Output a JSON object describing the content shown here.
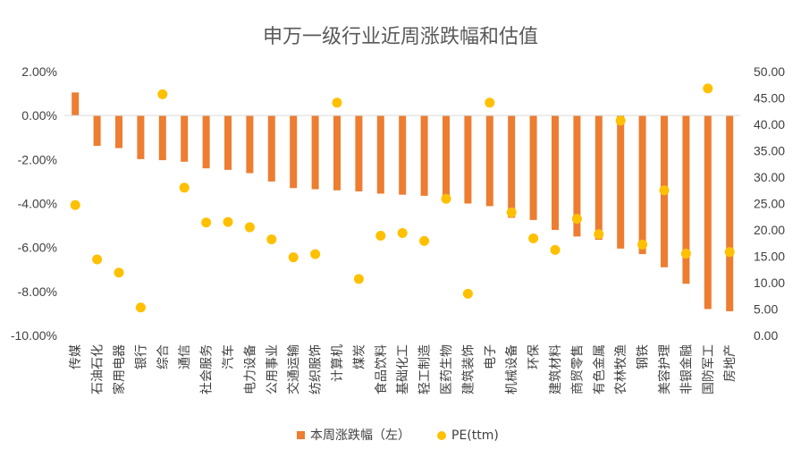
{
  "chart_data": {
    "type": "bar",
    "title": "申万一级行业近周涨跌幅和估值",
    "categories": [
      "传媒",
      "石油石化",
      "家用电器",
      "银行",
      "综合",
      "通信",
      "社会服务",
      "汽车",
      "电力设备",
      "公用事业",
      "交通运输",
      "纺织服饰",
      "计算机",
      "煤炭",
      "食品饮料",
      "基础化工",
      "轻工制造",
      "医药生物",
      "建筑装饰",
      "电子",
      "机械设备",
      "环保",
      "建筑材料",
      "商贸零售",
      "有色金属",
      "农林牧渔",
      "钢铁",
      "美容护理",
      "非银金融",
      "国防军工",
      "房地产"
    ],
    "series": [
      {
        "name": "本周涨跌幅（左）",
        "type": "bar",
        "axis": "left",
        "color": "#ED7D31",
        "values": [
          1.05,
          -1.38,
          -1.48,
          -1.98,
          -2.03,
          -2.1,
          -2.4,
          -2.47,
          -2.62,
          -3.0,
          -3.3,
          -3.35,
          -3.4,
          -3.45,
          -3.55,
          -3.6,
          -3.65,
          -3.88,
          -4.0,
          -4.12,
          -4.65,
          -4.75,
          -5.2,
          -5.5,
          -5.65,
          -6.05,
          -6.3,
          -6.9,
          -7.65,
          -8.8,
          -8.9
        ]
      },
      {
        "name": "PE(ttm)",
        "type": "scatter",
        "axis": "right",
        "color": "#FFC000",
        "values": [
          24.7,
          14.4,
          11.9,
          5.3,
          45.7,
          28.0,
          21.4,
          21.5,
          20.5,
          18.2,
          14.8,
          15.4,
          44.1,
          10.7,
          18.9,
          19.4,
          17.9,
          25.9,
          7.9,
          44.1,
          23.3,
          18.4,
          16.2,
          22.1,
          19.2,
          40.7,
          17.2,
          27.5,
          15.5,
          46.8,
          15.8
        ]
      }
    ],
    "y_left": {
      "ticks": [
        "2.00%",
        "0.00%",
        "-2.00%",
        "-4.00%",
        "-6.00%",
        "-8.00%",
        "-10.00%"
      ],
      "ylim": [
        -10,
        2
      ]
    },
    "y_right": {
      "ticks": [
        "50.00",
        "45.00",
        "40.00",
        "35.00",
        "30.00",
        "25.00",
        "20.00",
        "15.00",
        "10.00",
        "5.00",
        "0.00"
      ],
      "ylim": [
        0,
        50
      ]
    },
    "grid": false,
    "legend_position": "bottom"
  }
}
